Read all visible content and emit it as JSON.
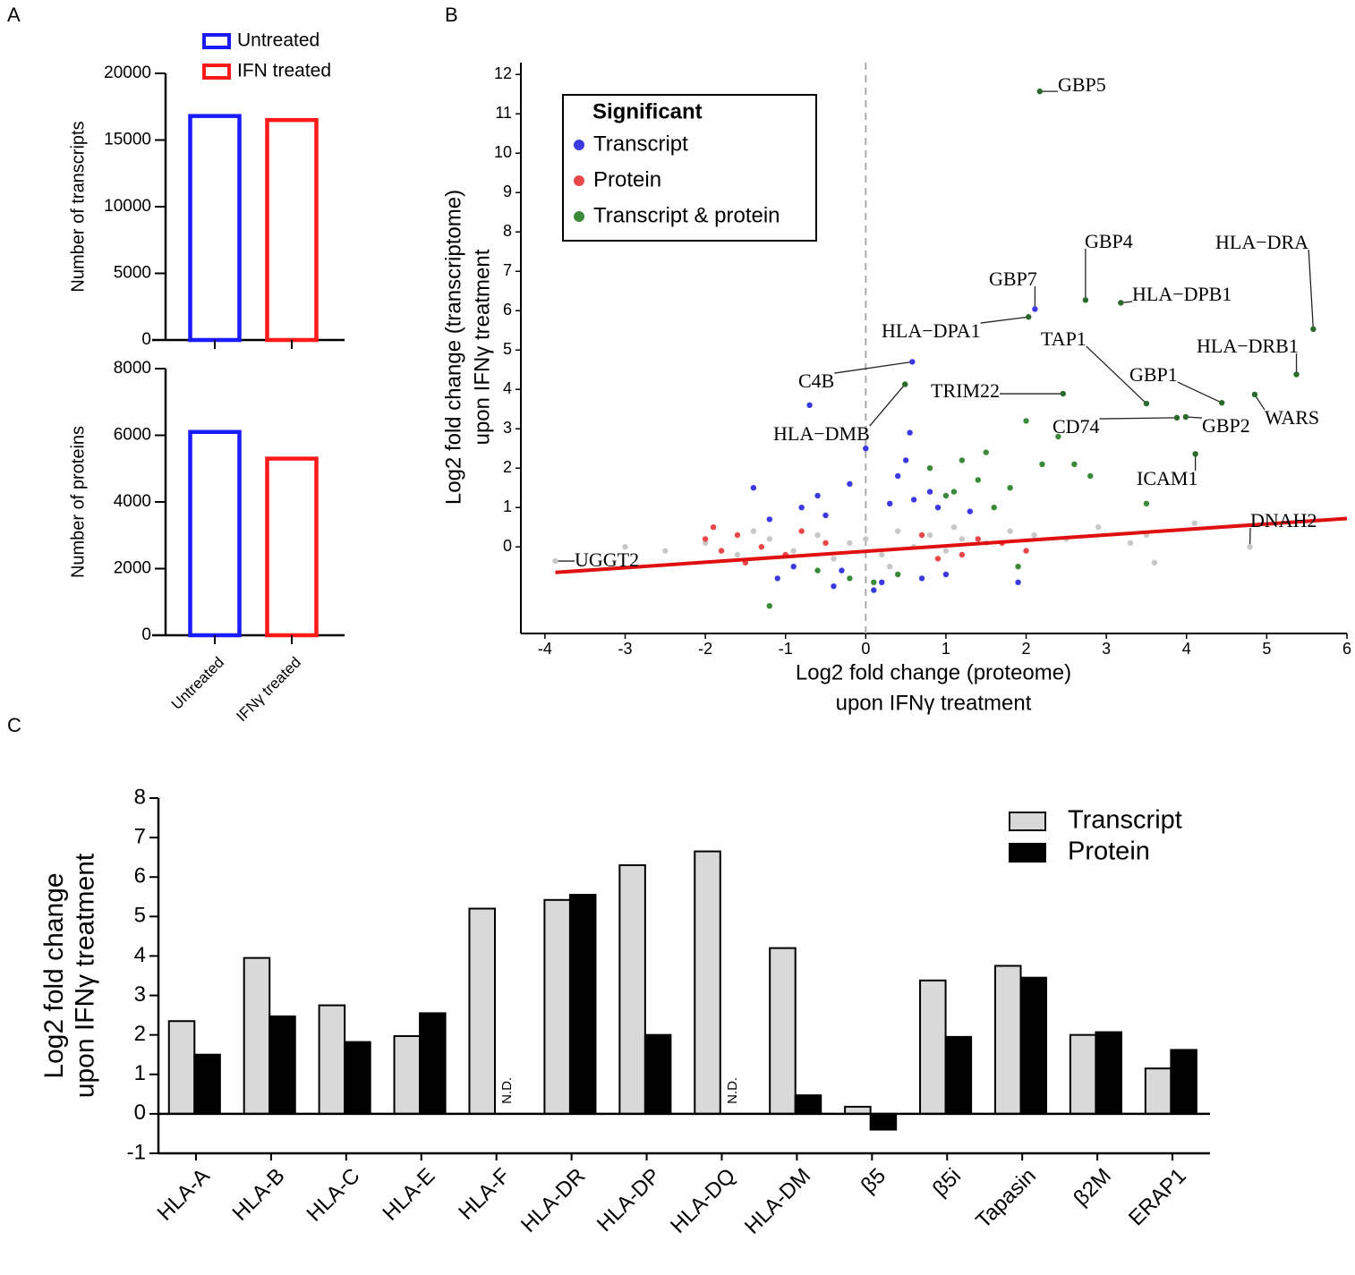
{
  "panel_labels": [
    "A",
    "B",
    "C"
  ],
  "chart_data": [
    {
      "type": "bar",
      "ylabel": "Number of transcripts",
      "categories": [
        "Untreated",
        "IFN treated"
      ],
      "values": [
        16800,
        16500
      ],
      "colors": [
        "#1a1aff",
        "#ff1a1a"
      ],
      "ylim": [
        0,
        20000
      ],
      "yticks": [
        0,
        5000,
        10000,
        15000,
        20000
      ],
      "legend": "top"
    },
    {
      "type": "bar",
      "ylabel": "Number of proteins",
      "categories": [
        "Untreated",
        "IFNγ treated"
      ],
      "values": [
        6100,
        5300
      ],
      "colors": [
        "#1a1aff",
        "#ff1a1a"
      ],
      "ylim": [
        0,
        8000
      ],
      "yticks": [
        0,
        2000,
        4000,
        6000,
        8000
      ]
    },
    {
      "type": "scatter",
      "xlabel": [
        "Log2 fold change (proteome)",
        "upon IFNγ treatment"
      ],
      "ylabel": [
        "Log2 fold change (transcriptome)",
        "upon IFNγ treatment"
      ],
      "legend_title": "Significant",
      "xlim": [
        -4.3,
        6
      ],
      "ylim": [
        -2.2,
        12.3
      ],
      "xticks": [
        -4,
        -3,
        -2,
        -1,
        0,
        1,
        2,
        3,
        4,
        5,
        6
      ],
      "yticks": [
        0,
        1,
        2,
        3,
        4,
        5,
        6,
        7,
        8,
        9,
        10,
        11,
        12
      ],
      "reference_line_x": 0,
      "fit_line": {
        "color": "#e01010",
        "x": [
          -3.87,
          6
        ],
        "y": [
          -0.65,
          0.72
        ]
      },
      "series": [
        {
          "color": "#c8c8c8",
          "x": [
            -2.5,
            -2,
            -1.6,
            -1.2,
            -0.9,
            -0.6,
            -0.4,
            -0.2,
            0,
            0.2,
            0.4,
            0.6,
            0.8,
            1,
            1.2,
            1.5,
            1.8,
            2.1,
            2.5,
            2.9,
            3.3,
            3.6,
            4.1,
            -3,
            -1.4,
            0.3,
            1.1,
            3.5
          ],
          "y": [
            -0.1,
            0.1,
            -0.2,
            0.2,
            -0.1,
            0.3,
            -0.3,
            0.1,
            0.2,
            -0.2,
            0.4,
            0,
            0.3,
            -0.1,
            0.2,
            0.1,
            0.4,
            0.3,
            0.2,
            0.5,
            0.1,
            -0.4,
            0.6,
            0,
            0.4,
            -0.5,
            0.5,
            0.3
          ]
        },
        {
          "name": "Transcript",
          "color": "#3a3ae0",
          "x": [
            -1.4,
            -1.1,
            -0.8,
            -0.6,
            -0.4,
            -0.2,
            0,
            0.2,
            0.4,
            0.6,
            0.8,
            1,
            -0.9,
            -0.5,
            0.1,
            0.5,
            0.9,
            1.3,
            -1.2,
            -0.3,
            0.3,
            0.7,
            0.55,
            -0.7,
            1.9
          ],
          "y": [
            1.5,
            -0.8,
            1,
            1.3,
            -1,
            1.6,
            2.5,
            -0.9,
            1.8,
            1.2,
            1.4,
            -0.7,
            -0.5,
            0.8,
            -1.1,
            2.2,
            1,
            0.9,
            0.7,
            -0.6,
            1.1,
            -0.8,
            2.9,
            3.6,
            -0.9
          ]
        },
        {
          "name": "Protein",
          "color": "#e84848",
          "x": [
            -2,
            -1.8,
            -1.6,
            -1.3,
            -1,
            -0.8,
            -0.5,
            0.9,
            1.4,
            1.7,
            2,
            -1.5,
            -1.9,
            0.7,
            1.2
          ],
          "y": [
            0.2,
            -0.1,
            0.3,
            0,
            -0.2,
            0.4,
            0.1,
            -0.3,
            0.2,
            0.1,
            -0.1,
            -0.4,
            0.5,
            0.3,
            -0.2
          ]
        },
        {
          "name": "Transcript & protein",
          "color": "#3a8a3a",
          "x": [
            -1.2,
            -0.6,
            0.1,
            0.4,
            0.8,
            1,
            1.2,
            1.4,
            1.5,
            1.6,
            1.8,
            2,
            2.2,
            2.4,
            2.6,
            2.8,
            3.5,
            -0.2,
            1.1,
            1.9
          ],
          "y": [
            -1.5,
            -0.6,
            -0.9,
            -0.7,
            2,
            1.3,
            2.2,
            1.7,
            2.4,
            1,
            1.5,
            3.2,
            2.1,
            2.8,
            2.1,
            1.8,
            1.1,
            -0.8,
            1.4,
            -0.5
          ]
        }
      ],
      "annotations": [
        {
          "text": "GBP5",
          "x": 2.17,
          "y": 11.57,
          "color": "#2a6a2a"
        },
        {
          "text": "GBP4",
          "x": 2.74,
          "y": 6.27,
          "color": "#2a6a2a"
        },
        {
          "text": "HLA−DPB1",
          "x": 3.18,
          "y": 6.2,
          "color": "#2a6a2a"
        },
        {
          "text": "HLA−DRA",
          "x": 5.58,
          "y": 5.53,
          "color": "#2a6a2a"
        },
        {
          "text": "GBP7",
          "x": 2.11,
          "y": 6.04,
          "color": "#3a3ae0"
        },
        {
          "text": "HLA−DPA1",
          "x": 2.03,
          "y": 5.84,
          "color": "#2a6a2a"
        },
        {
          "text": "TAP1",
          "x": 3.5,
          "y": 3.64,
          "color": "#2a6a2a"
        },
        {
          "text": "HLA−DRB1",
          "x": 5.37,
          "y": 4.38,
          "color": "#2a6a2a"
        },
        {
          "text": "GBP1",
          "x": 4.44,
          "y": 3.66,
          "color": "#2a6a2a"
        },
        {
          "text": "WARS",
          "x": 4.85,
          "y": 3.87,
          "color": "#2a6a2a"
        },
        {
          "text": "GBP2",
          "x": 3.99,
          "y": 3.3,
          "color": "#2a6a2a"
        },
        {
          "text": "CD74",
          "x": 3.88,
          "y": 3.28,
          "color": "#2a6a2a"
        },
        {
          "text": "TRIM22",
          "x": 2.46,
          "y": 3.89,
          "color": "#2a6a2a"
        },
        {
          "text": "C4B",
          "x": 0.58,
          "y": 4.7,
          "color": "#3a3ae0"
        },
        {
          "text": "HLA−DMB",
          "x": 0.49,
          "y": 4.13,
          "color": "#2a6a2a"
        },
        {
          "text": "ICAM1",
          "x": 4.11,
          "y": 2.36,
          "color": "#2a6a2a"
        },
        {
          "text": "DNAH2",
          "x": 4.79,
          "y": 0.0,
          "color": "#c8c8c8"
        },
        {
          "text": "UGGT2",
          "x": -3.87,
          "y": -0.36,
          "color": "#c8c8c8"
        }
      ]
    },
    {
      "type": "bar",
      "ylabel": [
        "Log2 fold change",
        "upon IFNγ treatment"
      ],
      "categories": [
        "HLA-A",
        "HLA-B",
        "HLA-C",
        "HLA-E",
        "HLA-F",
        "HLA-DR",
        "HLA-DP",
        "HLA-DQ",
        "HLA-DM",
        "β5",
        "β5i",
        "Tapasin",
        "β2M",
        "ERAP1"
      ],
      "series": [
        {
          "name": "Transcript",
          "color": "#d9d9d9",
          "values": [
            2.35,
            3.95,
            2.75,
            1.97,
            5.2,
            5.42,
            6.3,
            6.65,
            4.2,
            0.18,
            3.38,
            3.75,
            2.0,
            1.15
          ]
        },
        {
          "name": "Protein",
          "color": "#000000",
          "values": [
            1.5,
            2.47,
            1.82,
            2.55,
            null,
            5.55,
            2.0,
            null,
            0.47,
            -0.4,
            1.95,
            3.45,
            2.07,
            1.62
          ],
          "value_labels": [
            null,
            null,
            null,
            null,
            "N.D.",
            null,
            null,
            "N.D.",
            null,
            null,
            null,
            null,
            null,
            null
          ]
        }
      ],
      "ylim": [
        -1,
        8
      ],
      "yticks": [
        -1,
        0,
        1,
        2,
        3,
        4,
        5,
        6,
        7,
        8
      ],
      "legend": "upper right"
    }
  ]
}
